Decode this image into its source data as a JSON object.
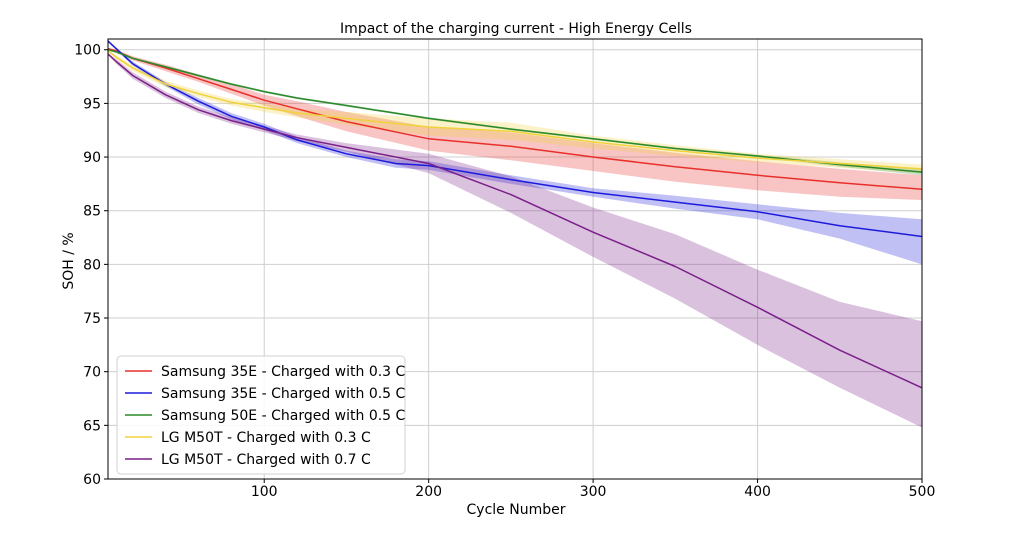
{
  "chart_data": {
    "type": "line",
    "title": "Impact of the charging current - High Energy Cells",
    "xlabel": "Cycle Number",
    "ylabel": "SOH / %",
    "xlim": [
      5,
      500
    ],
    "ylim": [
      60,
      101
    ],
    "xticks": [
      100,
      200,
      300,
      400,
      500
    ],
    "yticks": [
      60,
      65,
      70,
      75,
      80,
      85,
      90,
      95,
      100
    ],
    "grid": true,
    "legend_position": "lower-left",
    "series": [
      {
        "name": "Samsung 35E - Charged with 0.3 C",
        "color": "#e8302a",
        "x": [
          5,
          10,
          20,
          40,
          60,
          80,
          100,
          120,
          150,
          200,
          250,
          300,
          350,
          400,
          450,
          500
        ],
        "y": [
          100.1,
          99.9,
          99.2,
          98.3,
          97.3,
          96.3,
          95.3,
          94.5,
          93.3,
          91.7,
          91.0,
          90.0,
          89.1,
          88.3,
          87.6,
          87.0
        ],
        "lower": [
          100.0,
          99.8,
          99.0,
          98.0,
          97.0,
          95.9,
          94.8,
          93.8,
          92.4,
          90.6,
          89.7,
          88.7,
          87.7,
          86.9,
          86.3,
          86.0
        ],
        "upper": [
          100.2,
          100.0,
          99.4,
          98.6,
          97.7,
          96.8,
          95.8,
          95.2,
          94.2,
          92.8,
          92.3,
          91.3,
          90.4,
          89.6,
          88.9,
          88.3
        ]
      },
      {
        "name": "Samsung 35E - Charged with 0.5 C",
        "color": "#1d1bdc",
        "x": [
          5,
          10,
          20,
          40,
          60,
          80,
          100,
          120,
          150,
          180,
          200,
          250,
          300,
          350,
          400,
          450,
          500
        ],
        "y": [
          100.8,
          100.1,
          98.7,
          96.8,
          95.2,
          93.8,
          92.8,
          91.6,
          90.3,
          89.4,
          89.2,
          87.9,
          86.7,
          85.8,
          84.9,
          83.6,
          82.6
        ],
        "lower": [
          100.7,
          100.0,
          98.5,
          96.6,
          94.9,
          93.5,
          92.5,
          91.3,
          90.0,
          89.0,
          88.8,
          87.5,
          86.3,
          85.2,
          84.2,
          82.4,
          80.0
        ],
        "upper": [
          100.9,
          100.2,
          98.9,
          97.0,
          95.5,
          94.1,
          93.1,
          91.9,
          90.6,
          89.8,
          89.6,
          88.3,
          87.1,
          86.4,
          85.6,
          84.8,
          84.2
        ]
      },
      {
        "name": "Samsung 50E - Charged with 0.5 C",
        "color": "#2a8a2a",
        "x": [
          5,
          10,
          20,
          40,
          60,
          80,
          100,
          120,
          150,
          200,
          250,
          300,
          350,
          400,
          450,
          500
        ],
        "y": [
          100.0,
          99.8,
          99.2,
          98.4,
          97.6,
          96.8,
          96.1,
          95.5,
          94.8,
          93.6,
          92.6,
          91.7,
          90.8,
          90.1,
          89.3,
          88.6
        ],
        "lower": [
          99.9,
          99.7,
          99.1,
          98.3,
          97.5,
          96.7,
          96.0,
          95.4,
          94.7,
          93.5,
          92.5,
          91.6,
          90.7,
          90.0,
          89.1,
          88.3
        ],
        "upper": [
          100.1,
          99.9,
          99.3,
          98.5,
          97.7,
          96.9,
          96.2,
          95.6,
          94.9,
          93.7,
          92.7,
          91.8,
          90.9,
          90.2,
          89.5,
          88.9
        ]
      },
      {
        "name": "LG M50T - Charged with 0.3 C",
        "color": "#f0d23c",
        "x": [
          5,
          10,
          20,
          40,
          60,
          80,
          100,
          120,
          150,
          200,
          250,
          300,
          350,
          400,
          450,
          500
        ],
        "y": [
          99.9,
          99.3,
          98.3,
          96.8,
          95.9,
          95.1,
          94.6,
          94.1,
          93.6,
          92.8,
          92.4,
          91.4,
          90.6,
          89.9,
          89.4,
          88.9
        ],
        "lower": [
          99.8,
          99.1,
          98.0,
          96.5,
          95.6,
          94.8,
          94.2,
          93.7,
          93.0,
          92.0,
          91.6,
          90.8,
          90.1,
          89.5,
          89.0,
          88.5
        ],
        "upper": [
          100.0,
          99.5,
          98.6,
          97.1,
          96.2,
          95.4,
          95.0,
          94.5,
          94.2,
          93.6,
          93.2,
          92.0,
          91.1,
          90.3,
          89.8,
          89.3
        ]
      },
      {
        "name": "LG M50T - Charged with 0.7 C",
        "color": "#7b1f8a",
        "x": [
          5,
          10,
          20,
          40,
          60,
          80,
          100,
          120,
          150,
          200,
          250,
          300,
          350,
          400,
          450,
          500
        ],
        "y": [
          99.6,
          98.9,
          97.6,
          95.8,
          94.4,
          93.4,
          92.6,
          91.8,
          90.9,
          89.4,
          86.5,
          83.0,
          79.8,
          76.0,
          72.0,
          68.5
        ],
        "lower": [
          99.5,
          98.7,
          97.3,
          95.5,
          94.1,
          93.1,
          92.3,
          91.5,
          90.5,
          88.5,
          84.8,
          80.7,
          76.8,
          72.5,
          68.5,
          64.8
        ],
        "upper": [
          99.7,
          99.1,
          97.9,
          96.1,
          94.7,
          93.7,
          92.9,
          92.1,
          91.3,
          90.3,
          88.2,
          85.3,
          82.8,
          79.5,
          76.5,
          74.7
        ]
      }
    ]
  }
}
